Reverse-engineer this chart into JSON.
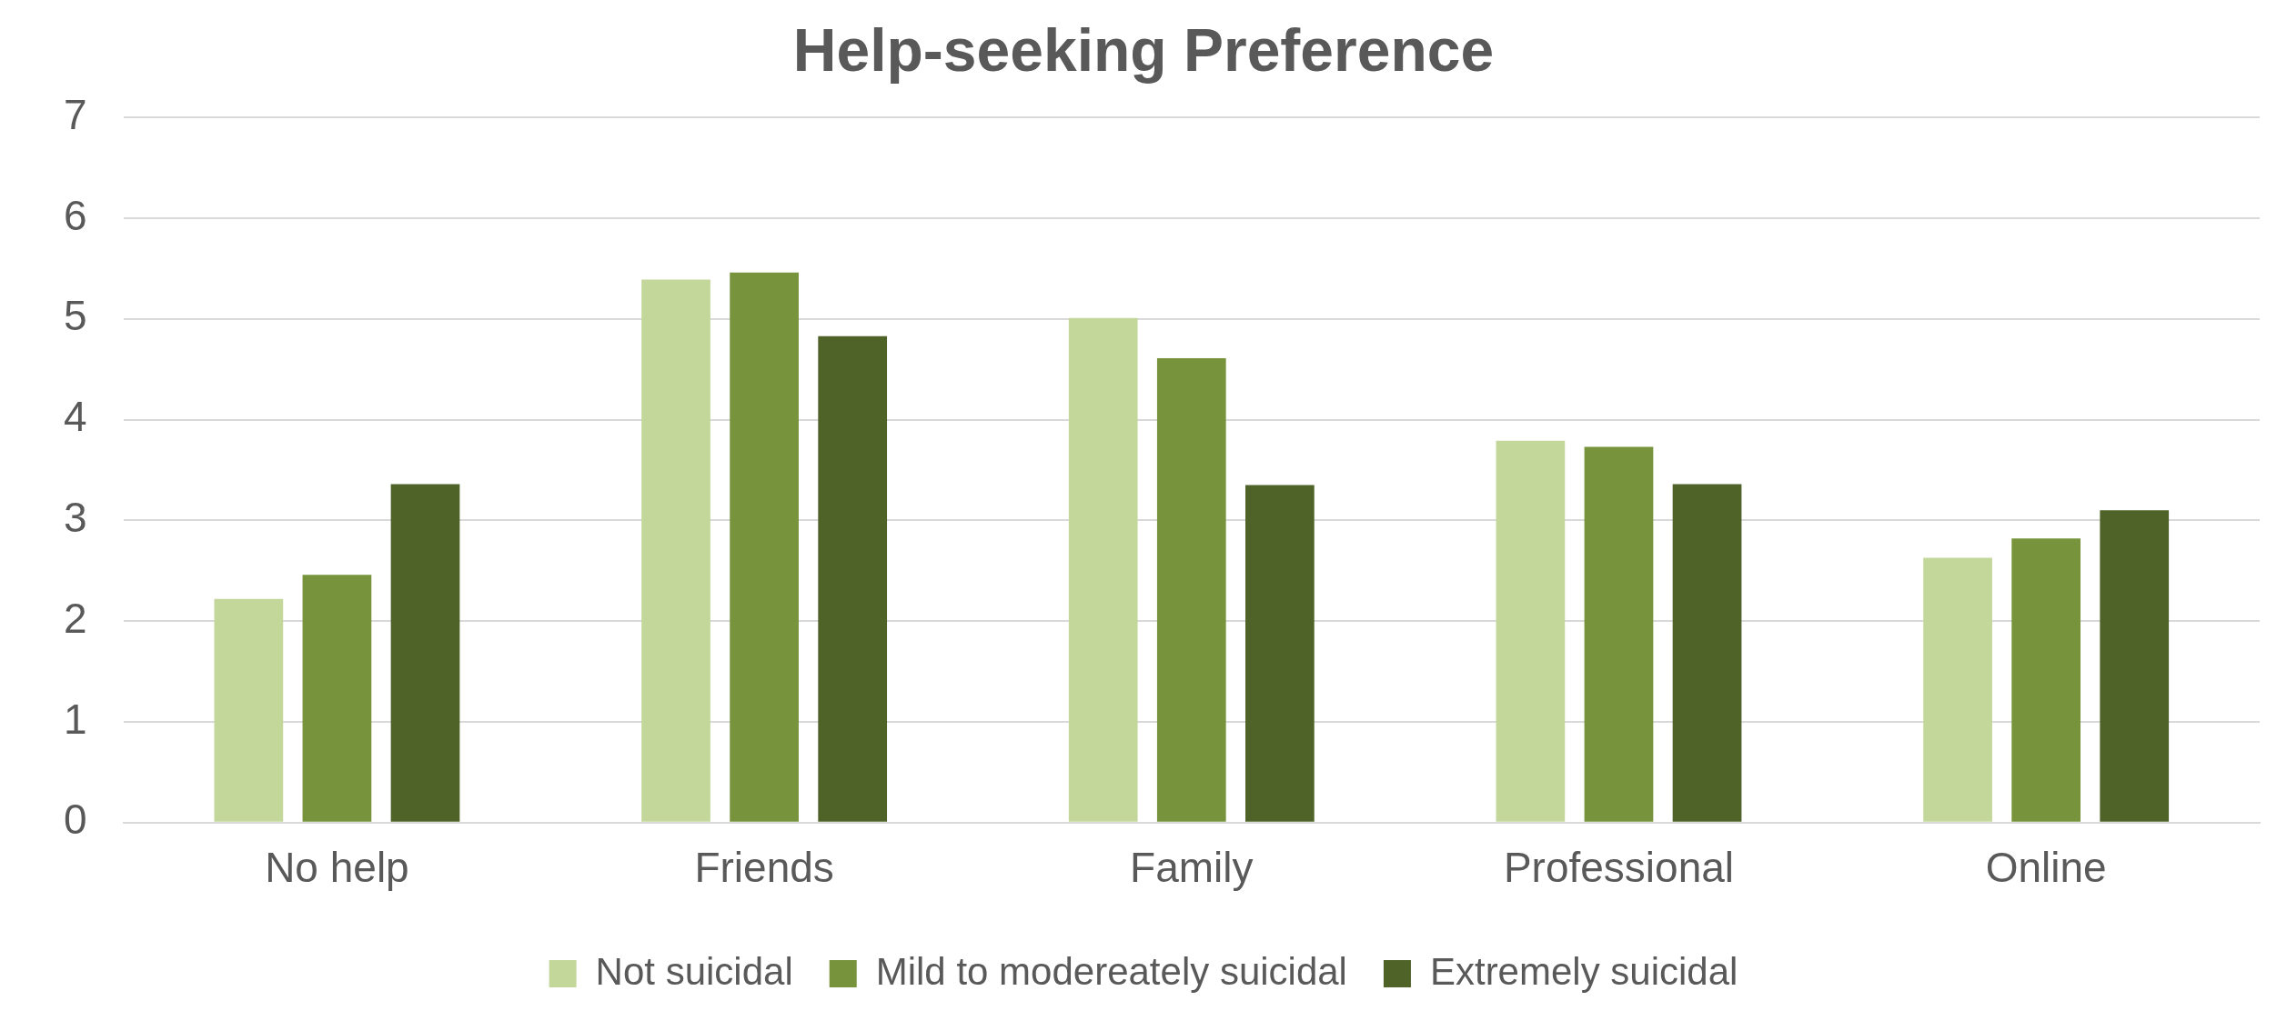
{
  "chart_data": {
    "type": "bar",
    "title": "Help-seeking Preference",
    "categories": [
      "No help",
      "Friends",
      "Family",
      "Professional",
      "Online"
    ],
    "series": [
      {
        "name": "Not suicidal",
        "color": "#c4d79b",
        "values": [
          2.22,
          5.39,
          5.01,
          3.79,
          2.63
        ]
      },
      {
        "name": "Mild to modereately suicidal",
        "color": "#77933c",
        "values": [
          2.46,
          5.46,
          4.61,
          3.73,
          2.82
        ]
      },
      {
        "name": "Extremely suicidal",
        "color": "#4f6228",
        "values": [
          3.36,
          4.83,
          3.35,
          3.36,
          3.1
        ]
      }
    ],
    "ylim": [
      0,
      7
    ],
    "yticks": [
      0,
      1,
      2,
      3,
      4,
      5,
      6,
      7
    ],
    "grid": "y",
    "legend": "bottom"
  }
}
